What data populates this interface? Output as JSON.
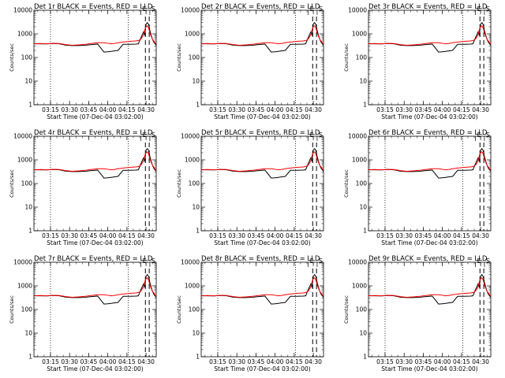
{
  "figure": {
    "x_tick_labels": [
      "03:15",
      "03:30",
      "03:45",
      "04:00",
      "04:15",
      "04:30"
    ],
    "y_tick_labels": [
      "1",
      "10",
      "100",
      "1000",
      "10000"
    ],
    "xlabel": "Start Time (07-Dec-04 03:02:00)",
    "ylabel": "Counts/sec",
    "flag_labels": [
      "E",
      "S"
    ],
    "series_colors": {
      "events": "#000000",
      "lld": "#ff0000"
    }
  },
  "chart_data": [
    {
      "type": "line",
      "title": "Det 1r BLACK = Events, RED = LLD"
    },
    {
      "type": "line",
      "title": "Det 2r BLACK = Events, RED = LLD"
    },
    {
      "type": "line",
      "title": "Det 3r BLACK = Events, RED = LLD"
    },
    {
      "type": "line",
      "title": "Det 4r BLACK = Events, RED = LLD"
    },
    {
      "type": "line",
      "title": "Det 5r BLACK = Events, RED = LLD"
    },
    {
      "type": "line",
      "title": "Det 6r BLACK = Events, RED = LLD"
    },
    {
      "type": "line",
      "title": "Det 7r BLACK = Events, RED = LLD"
    },
    {
      "type": "line",
      "title": "Det 8r BLACK = Events, RED = LLD"
    },
    {
      "type": "line",
      "title": "Det 9r BLACK = Events, RED = LLD"
    }
  ],
  "shared_series": {
    "x_minutes_since_start": [
      0,
      5,
      10,
      15,
      20,
      25,
      30,
      35,
      40,
      45,
      50,
      55,
      58,
      60,
      63,
      66,
      70,
      75,
      80,
      82,
      84,
      86,
      87,
      88,
      89,
      90,
      91,
      92,
      93,
      94,
      95,
      96
    ],
    "events": [
      380,
      380,
      375,
      390,
      380,
      330,
      320,
      320,
      330,
      350,
      370,
      170,
      175,
      180,
      190,
      200,
      360,
      360,
      370,
      380,
      700,
      1200,
      900,
      2600,
      3000,
      2500,
      1400,
      900,
      600,
      450,
      380,
      330
    ],
    "lld": [
      380,
      390,
      380,
      400,
      390,
      350,
      330,
      340,
      360,
      390,
      420,
      420,
      400,
      380,
      390,
      420,
      450,
      480,
      500,
      520,
      600,
      900,
      1500,
      2000,
      2200,
      1800,
      1100,
      800,
      600,
      500,
      420,
      380
    ],
    "x_range_minutes": [
      0,
      96
    ],
    "y_range": [
      1,
      10000
    ],
    "y_scale": "log",
    "dotted_vline_x_minutes": [
      13,
      74
    ],
    "dashed_vline_x_minutes": [
      87.5,
      90.5
    ],
    "flag_tick_x_minutes": [
      84,
      91
    ]
  }
}
